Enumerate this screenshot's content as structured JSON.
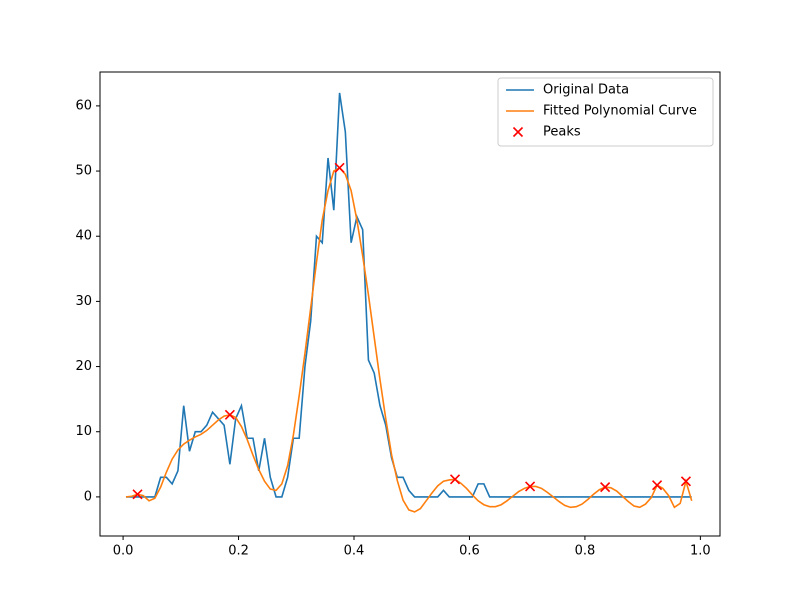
{
  "chart_data": {
    "type": "line",
    "x": [
      0.005,
      0.015,
      0.025,
      0.035,
      0.045,
      0.055,
      0.065,
      0.075,
      0.085,
      0.095,
      0.105,
      0.115,
      0.125,
      0.135,
      0.145,
      0.155,
      0.165,
      0.175,
      0.185,
      0.195,
      0.205,
      0.215,
      0.225,
      0.235,
      0.245,
      0.255,
      0.265,
      0.275,
      0.285,
      0.295,
      0.305,
      0.315,
      0.325,
      0.335,
      0.345,
      0.355,
      0.365,
      0.375,
      0.385,
      0.395,
      0.405,
      0.415,
      0.425,
      0.435,
      0.445,
      0.455,
      0.465,
      0.475,
      0.485,
      0.495,
      0.505,
      0.515,
      0.525,
      0.535,
      0.545,
      0.555,
      0.565,
      0.575,
      0.585,
      0.595,
      0.605,
      0.615,
      0.625,
      0.635,
      0.645,
      0.655,
      0.665,
      0.675,
      0.685,
      0.695,
      0.705,
      0.715,
      0.725,
      0.735,
      0.745,
      0.755,
      0.765,
      0.775,
      0.785,
      0.795,
      0.805,
      0.815,
      0.825,
      0.835,
      0.845,
      0.855,
      0.865,
      0.875,
      0.885,
      0.895,
      0.905,
      0.915,
      0.925,
      0.935,
      0.945,
      0.955,
      0.965,
      0.975,
      0.985
    ],
    "series": [
      {
        "name": "Original Data",
        "color": "#1f77b4",
        "values": [
          0,
          0,
          0,
          0,
          0,
          0,
          3,
          3,
          2,
          4,
          14,
          7,
          10,
          10,
          11,
          13,
          12,
          11,
          5,
          12,
          14,
          9,
          9,
          4,
          9,
          3,
          0,
          0,
          3,
          9,
          9,
          20,
          27,
          40,
          39,
          52,
          44,
          62,
          56,
          39,
          43,
          41,
          21,
          19,
          14,
          11,
          6,
          3,
          3,
          1,
          0,
          0,
          0,
          0,
          0,
          1,
          0,
          0,
          0,
          0,
          0,
          2,
          2,
          0,
          0,
          0,
          0,
          0,
          0,
          0,
          0,
          0,
          0,
          0,
          0,
          0,
          0,
          0,
          0,
          0,
          0,
          0,
          0,
          0,
          0,
          0,
          0,
          0,
          0,
          0,
          0,
          0,
          0,
          0,
          0,
          0,
          0,
          0,
          0
        ]
      },
      {
        "name": "Fitted Polynomial Curve",
        "color": "#ff7f0e",
        "values": [
          0,
          0.1,
          0.4,
          0.2,
          -0.6,
          -0.2,
          1.5,
          3.8,
          5.8,
          7.2,
          8.1,
          8.7,
          9.2,
          9.6,
          10.2,
          11,
          11.8,
          12.4,
          12.6,
          12.2,
          10.8,
          8.8,
          6.4,
          4.2,
          2.4,
          1.2,
          1.0,
          2.0,
          4.8,
          9.5,
          15.5,
          22,
          29,
          36,
          42.5,
          47,
          50,
          50.5,
          49.5,
          47,
          42.5,
          37,
          31,
          24.5,
          18,
          12,
          6.5,
          2.5,
          -0.5,
          -2,
          -2.3,
          -1.8,
          -0.6,
          0.6,
          1.7,
          2.4,
          2.6,
          2.7,
          2.1,
          1.3,
          0.3,
          -0.6,
          -1.2,
          -1.5,
          -1.5,
          -1.2,
          -0.6,
          0.1,
          0.8,
          1.3,
          1.6,
          1.6,
          1.3,
          0.7,
          0,
          -0.7,
          -1.3,
          -1.6,
          -1.5,
          -1.1,
          -0.4,
          0.4,
          1.1,
          1.5,
          1.4,
          0.9,
          0.1,
          -0.7,
          -1.4,
          -1.6,
          -1.1,
          -0.1,
          1.8,
          1.3,
          0.2,
          -1.6,
          -1,
          2.4,
          -0.6
        ]
      },
      {
        "name": "Peaks",
        "color": "#ff0000",
        "type": "scatter",
        "x": [
          0.025,
          0.185,
          0.375,
          0.575,
          0.705,
          0.835,
          0.925,
          0.975
        ],
        "values": [
          0.4,
          12.6,
          50.5,
          2.7,
          1.6,
          1.5,
          1.8,
          2.4
        ]
      }
    ],
    "xlim": [
      -0.04,
      1.034
    ],
    "ylim": [
      -6,
      65.2
    ],
    "xticks": [
      {
        "value": 0,
        "label": "0.0"
      },
      0.2,
      0.4,
      0.6,
      0.8,
      {
        "value": 1,
        "label": "1.0"
      }
    ],
    "yticks": [
      0,
      10,
      20,
      30,
      40,
      50,
      60
    ],
    "grid": false,
    "legend": "upper right"
  }
}
